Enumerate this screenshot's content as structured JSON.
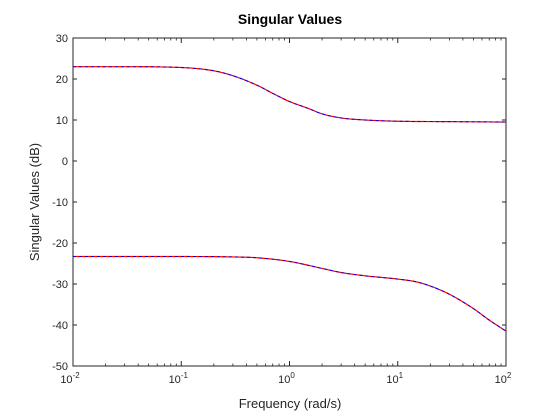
{
  "chart_data": {
    "type": "line",
    "title": "Singular Values",
    "xlabel": "Frequency (rad/s)",
    "ylabel": "Singular Values (dB)",
    "xscale": "log",
    "xlim": [
      0.01,
      100
    ],
    "ylim": [
      -50,
      30
    ],
    "grid": false,
    "x_ticks": [
      {
        "value": 0.01,
        "base": "10",
        "exp": "-2"
      },
      {
        "value": 0.1,
        "base": "10",
        "exp": "-1"
      },
      {
        "value": 1,
        "base": "10",
        "exp": "0"
      },
      {
        "value": 10,
        "base": "10",
        "exp": "1"
      },
      {
        "value": 100,
        "base": "10",
        "exp": "2"
      }
    ],
    "y_ticks": [
      {
        "value": 30,
        "label": "30"
      },
      {
        "value": 20,
        "label": "20"
      },
      {
        "value": 10,
        "label": "10"
      },
      {
        "value": 0,
        "label": "0"
      },
      {
        "value": -10,
        "label": "-10"
      },
      {
        "value": -20,
        "label": "-20"
      },
      {
        "value": -30,
        "label": "-30"
      },
      {
        "value": -40,
        "label": "-40"
      },
      {
        "value": -50,
        "label": "-50"
      }
    ],
    "colors": {
      "upper": "#ff0000",
      "overlay": "#0000ff",
      "axes": "#262626"
    },
    "series": [
      {
        "x": [
          0.01,
          0.03,
          0.1,
          0.2,
          0.3,
          0.5,
          0.7,
          1,
          1.5,
          2,
          3,
          5,
          10,
          30,
          100
        ],
        "values": [
          23.0,
          23.0,
          22.8,
          22.0,
          20.8,
          18.5,
          16.5,
          14.5,
          12.8,
          11.5,
          10.5,
          10.0,
          9.7,
          9.6,
          9.5
        ]
      },
      {
        "x": [
          0.01,
          0.1,
          0.3,
          0.5,
          1,
          2,
          3,
          5,
          10,
          15,
          20,
          30,
          50,
          70,
          100
        ],
        "values": [
          -23.3,
          -23.3,
          -23.4,
          -23.6,
          -24.5,
          -26.2,
          -27.2,
          -28.0,
          -28.8,
          -29.5,
          -30.5,
          -32.5,
          -36.0,
          -38.8,
          -41.5
        ]
      }
    ]
  }
}
